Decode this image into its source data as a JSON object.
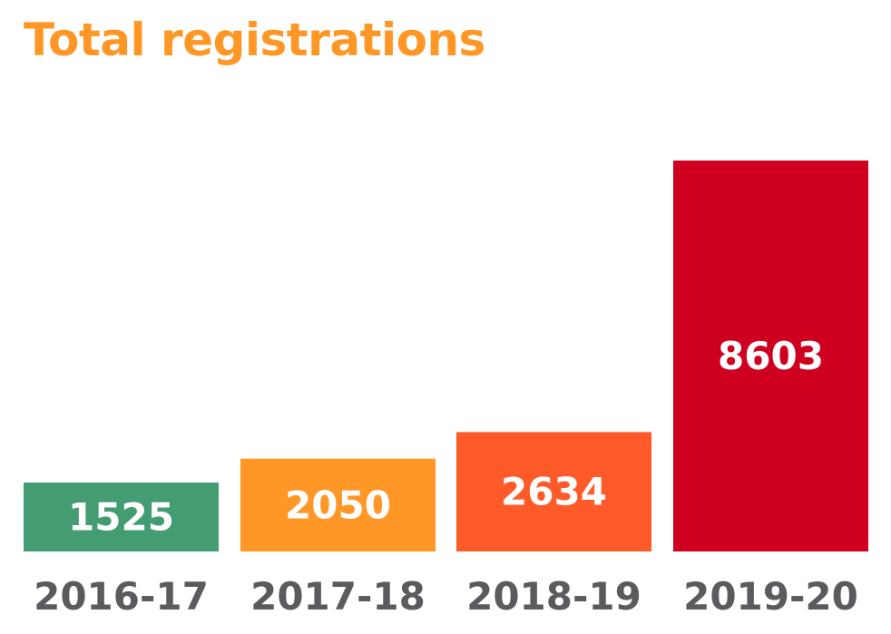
{
  "chart_data": {
    "type": "bar",
    "title": "Total registrations",
    "categories": [
      "2016-17",
      "2017-18",
      "2018-19",
      "2019-20"
    ],
    "values": [
      1525,
      2050,
      2634,
      8603
    ],
    "data_labels": [
      "1525",
      "2050",
      "2634",
      "8603"
    ],
    "bar_colors": [
      "#449d72",
      "#ff9727",
      "#ff5b2a",
      "#cf001f"
    ],
    "title_color": "#ff9727",
    "label_color": "#5a5a5f",
    "xlabel": "",
    "ylabel": "",
    "ylim": [
      0,
      8603
    ],
    "grid": false,
    "legend": "none"
  }
}
